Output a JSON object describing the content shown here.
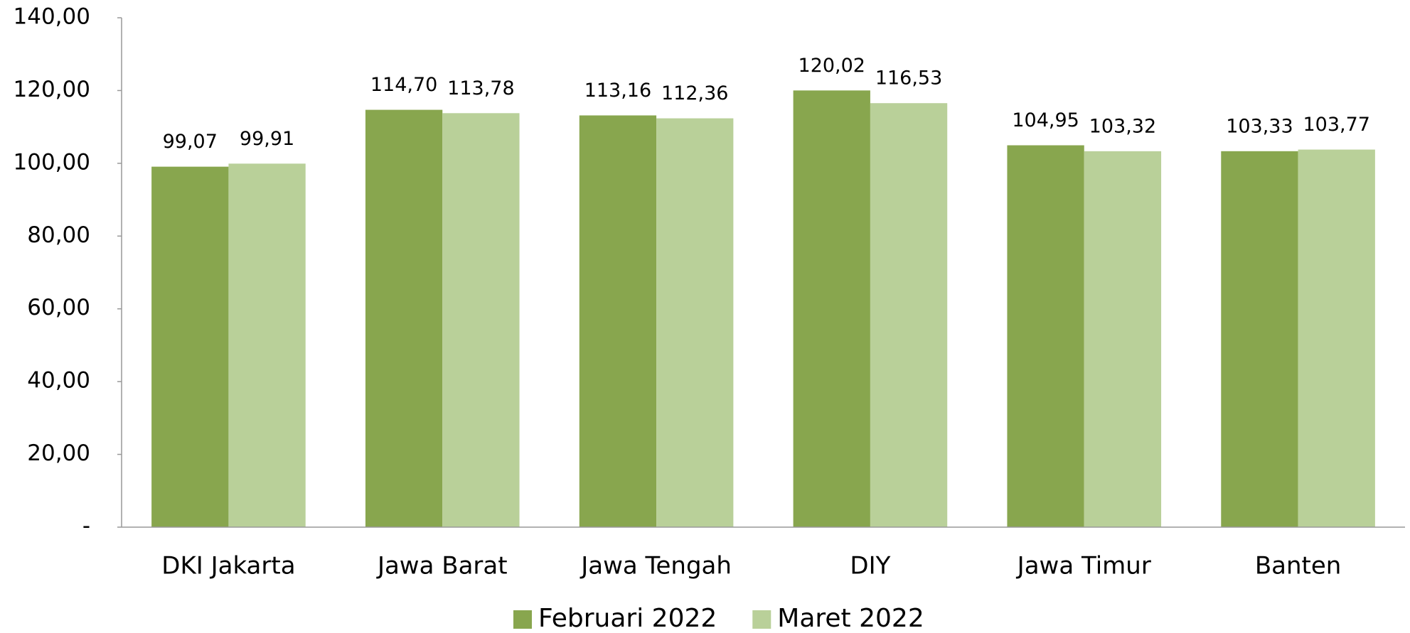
{
  "chart_data": {
    "type": "bar",
    "categories": [
      "DKI Jakarta",
      "Jawa Barat",
      "Jawa Tengah",
      "DIY",
      "Jawa Timur",
      "Banten"
    ],
    "series": [
      {
        "name": "Februari 2022",
        "color": "#88a64e",
        "values": [
          99.07,
          114.7,
          113.16,
          120.02,
          104.95,
          103.33
        ],
        "value_labels": [
          "99,07",
          "114,70",
          "113,16",
          "120,02",
          "104,95",
          "103,33"
        ]
      },
      {
        "name": "Maret 2022",
        "color": "#b9d099",
        "values": [
          99.91,
          113.78,
          112.36,
          116.53,
          103.32,
          103.77
        ],
        "value_labels": [
          "99,91",
          "113,78",
          "112,36",
          "116,53",
          "103,32",
          "103,77"
        ]
      }
    ],
    "ylim": [
      0,
      140
    ],
    "yticks": [
      {
        "value": 0,
        "label": "-"
      },
      {
        "value": 20,
        "label": "20,00"
      },
      {
        "value": 40,
        "label": "40,00"
      },
      {
        "value": 60,
        "label": "60,00"
      },
      {
        "value": 80,
        "label": "80,00"
      },
      {
        "value": 100,
        "label": "100,00"
      },
      {
        "value": 120,
        "label": "120,00"
      },
      {
        "value": 140,
        "label": "140,00"
      }
    ],
    "legend": "bottom"
  }
}
